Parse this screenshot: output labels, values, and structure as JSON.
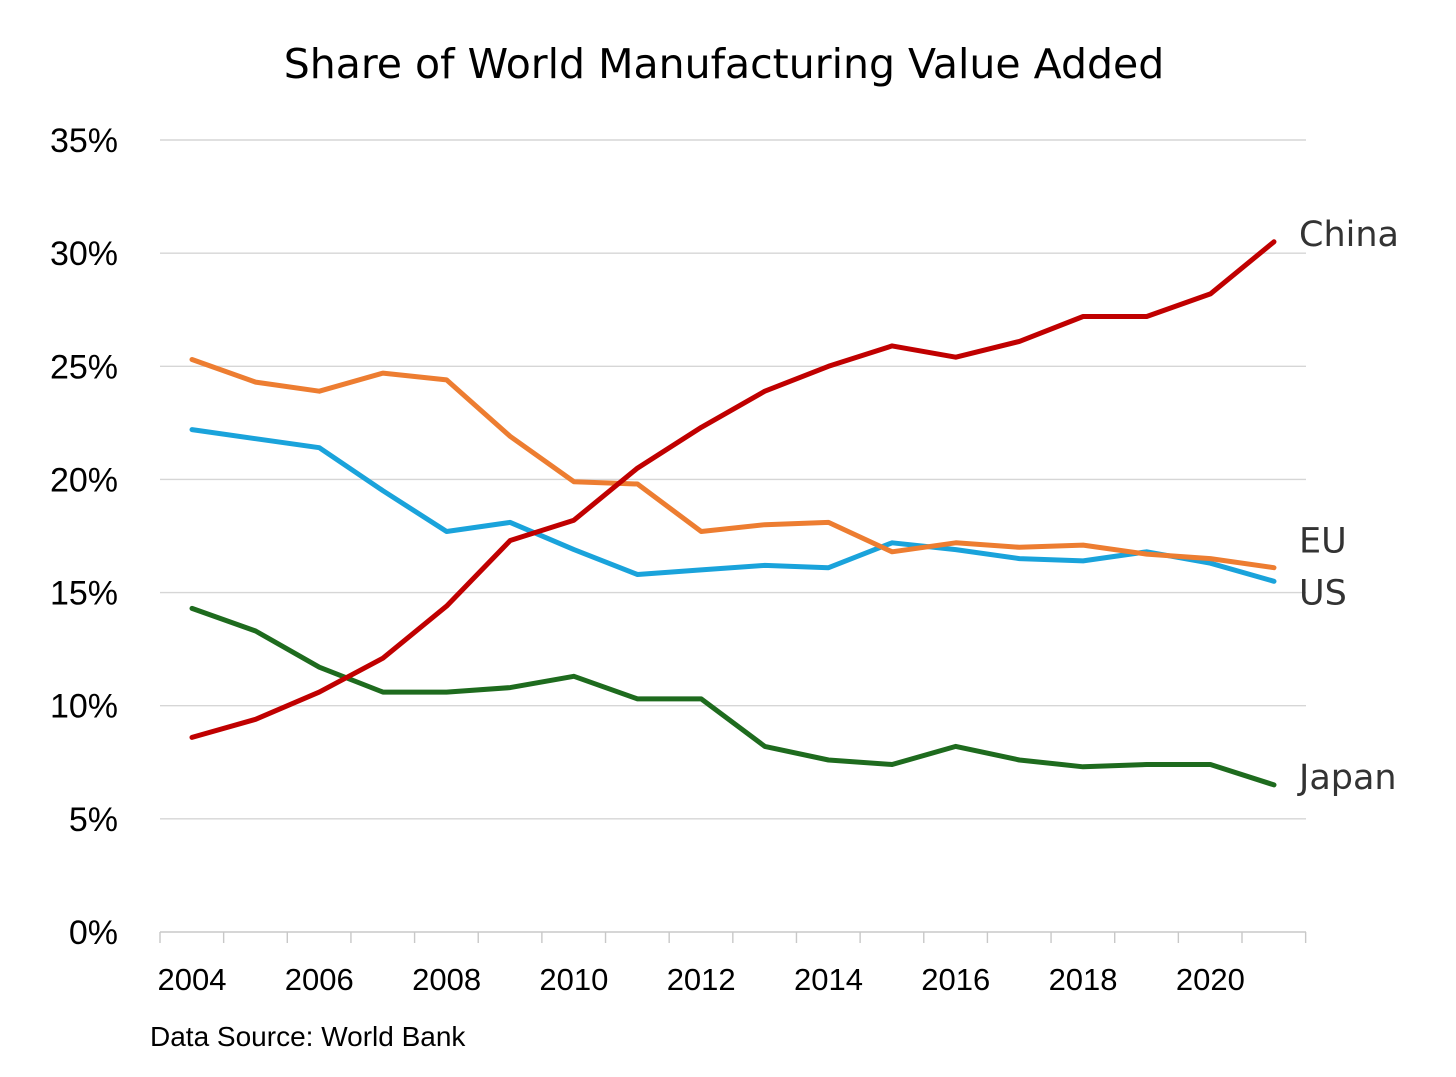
{
  "chart_data": {
    "type": "line",
    "title": "Share of World Manufacturing Value Added",
    "xlabel": "",
    "ylabel": "",
    "x": [
      2004,
      2005,
      2006,
      2007,
      2008,
      2009,
      2010,
      2011,
      2012,
      2013,
      2014,
      2015,
      2016,
      2017,
      2018,
      2019,
      2020,
      2021
    ],
    "x_tick_labels": [
      "2004",
      "2006",
      "2008",
      "2010",
      "2012",
      "2014",
      "2016",
      "2018",
      "2020"
    ],
    "y_tick_labels": [
      "0%",
      "5%",
      "10%",
      "15%",
      "20%",
      "25%",
      "30%",
      "35%"
    ],
    "ylim": [
      0,
      35
    ],
    "xlim": [
      2003.5,
      2021.5
    ],
    "grid": "horizontal",
    "legend": "direct labels at line ends (right)",
    "series": [
      {
        "name": "China",
        "color": "#c00000",
        "values": [
          8.6,
          9.4,
          10.6,
          12.1,
          14.4,
          17.3,
          18.2,
          20.5,
          22.3,
          23.9,
          25.0,
          25.9,
          25.4,
          26.1,
          27.2,
          27.2,
          28.2,
          30.5
        ]
      },
      {
        "name": "EU",
        "color": "#ed7d31",
        "values": [
          25.3,
          24.3,
          23.9,
          24.7,
          24.4,
          21.9,
          19.9,
          19.8,
          17.7,
          18.0,
          18.1,
          16.8,
          17.2,
          17.0,
          17.1,
          16.7,
          16.5,
          16.1
        ]
      },
      {
        "name": "US",
        "color": "#1aa3db",
        "values": [
          22.2,
          21.8,
          21.4,
          19.5,
          17.7,
          18.1,
          16.9,
          15.8,
          16.0,
          16.2,
          16.1,
          17.2,
          16.9,
          16.5,
          16.4,
          16.8,
          16.3,
          15.5
        ]
      },
      {
        "name": "Japan",
        "color": "#1e6b1e",
        "values": [
          14.3,
          13.3,
          11.7,
          10.6,
          10.6,
          10.8,
          11.3,
          10.3,
          10.3,
          8.2,
          7.6,
          7.4,
          8.2,
          7.6,
          7.3,
          7.4,
          7.4,
          6.5
        ]
      }
    ],
    "series_label_order": [
      "China",
      "EU",
      "US",
      "Japan"
    ]
  },
  "source_note": "Data Source: World Bank"
}
